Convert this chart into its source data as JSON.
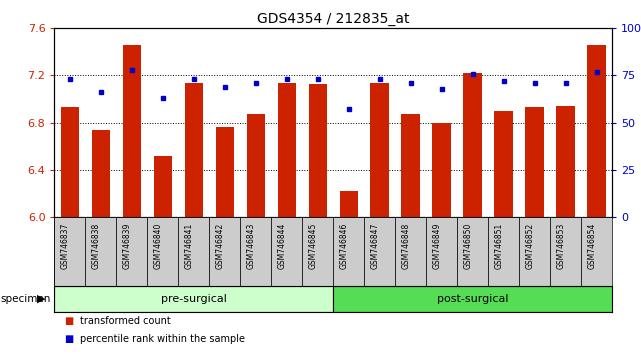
{
  "title": "GDS4354 / 212835_at",
  "samples": [
    "GSM746837",
    "GSM746838",
    "GSM746839",
    "GSM746840",
    "GSM746841",
    "GSM746842",
    "GSM746843",
    "GSM746844",
    "GSM746845",
    "GSM746846",
    "GSM746847",
    "GSM746848",
    "GSM746849",
    "GSM746850",
    "GSM746851",
    "GSM746852",
    "GSM746853",
    "GSM746854"
  ],
  "bar_values": [
    6.93,
    6.74,
    7.46,
    6.52,
    7.14,
    6.76,
    6.87,
    7.14,
    7.13,
    6.22,
    7.14,
    6.87,
    6.8,
    7.22,
    6.9,
    6.93,
    6.94,
    7.46
  ],
  "percentile_values": [
    73,
    66,
    78,
    63,
    73,
    69,
    71,
    73,
    73,
    57,
    73,
    71,
    68,
    76,
    72,
    71,
    71,
    77
  ],
  "ylim_left": [
    6.0,
    7.6
  ],
  "ylim_right": [
    0,
    100
  ],
  "yticks_left": [
    6.0,
    6.4,
    6.8,
    7.2,
    7.6
  ],
  "yticks_right": [
    0,
    25,
    50,
    75,
    100
  ],
  "bar_color": "#cc2200",
  "dot_color": "#0000cc",
  "pre_surgical_count": 9,
  "post_surgical_count": 9,
  "group_labels": [
    "pre-surgical",
    "post-surgical"
  ],
  "pre_color": "#ccffcc",
  "post_color": "#55dd55",
  "legend_bar_label": "transformed count",
  "legend_dot_label": "percentile rank within the sample",
  "grid_yticks": [
    6.4,
    6.8,
    7.2
  ]
}
